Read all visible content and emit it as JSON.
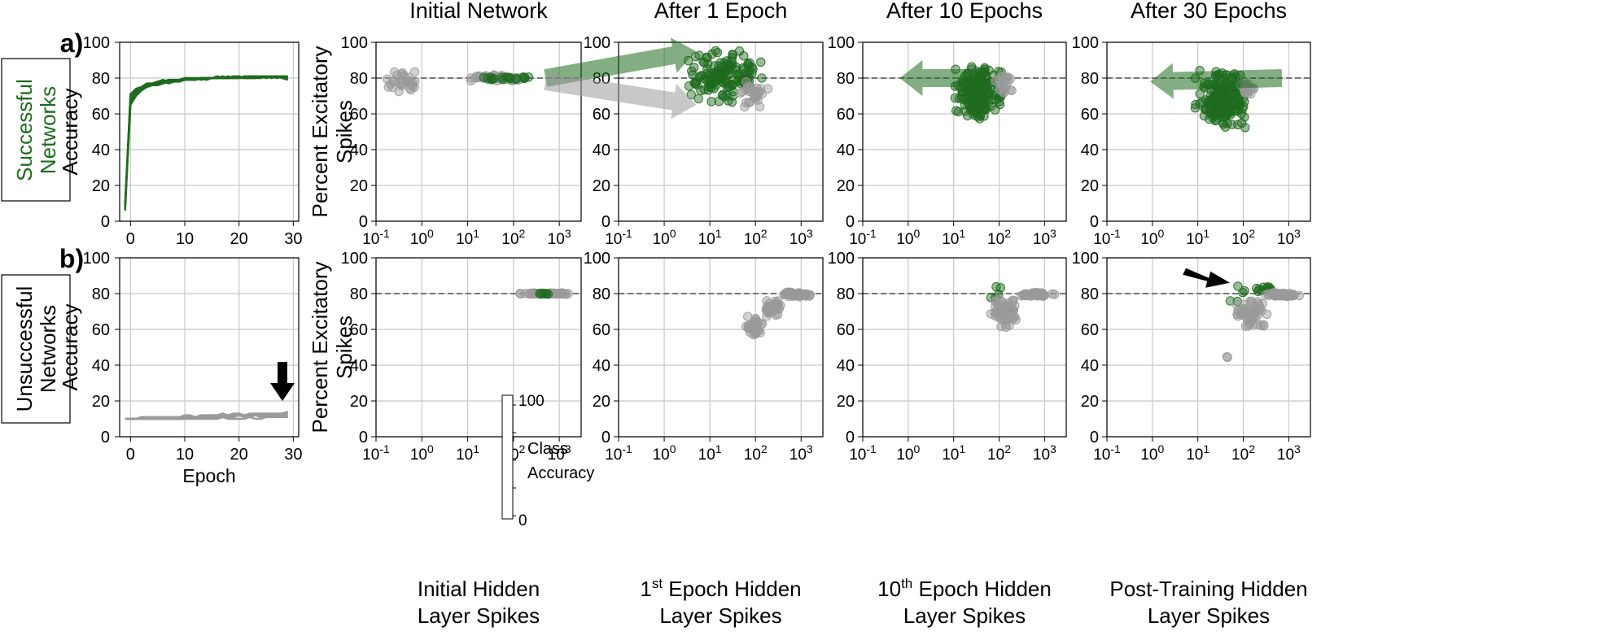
{
  "row_labels": {
    "a": "a)",
    "b": "b)",
    "successful": [
      "Successful",
      "Networks"
    ],
    "unsuccessful": [
      "Unsuccessful",
      "Networks"
    ]
  },
  "column_titles": [
    "Initial Network",
    "After 1 Epoch",
    "After 10 Epochs",
    "After 30 Epochs"
  ],
  "scatter_xlabels": [
    [
      "Initial Hidden",
      "Layer Spikes"
    ],
    [
      "1st Epoch Hidden",
      "Layer Spikes"
    ],
    [
      "10th Epoch Hidden",
      "Layer Spikes"
    ],
    [
      "Post-Training Hidden",
      "Layer Spikes"
    ]
  ],
  "scatter_ylabel": [
    "Percent Excitatory",
    "Spikes"
  ],
  "accuracy_ylabel": "Accuracy",
  "accuracy_xlabel": "Epoch",
  "colorbar": {
    "label": [
      "Class",
      "Accuracy"
    ],
    "min_label": "0",
    "max_label": "100"
  },
  "colors": {
    "successful": "#1e6b1e",
    "unsuccessful": "#9a9a9a",
    "grid": "#c8c8c8",
    "reference_line": "#777777"
  },
  "chart_data": [
    {
      "id": "accuracy-successful",
      "type": "line",
      "xlabel": "",
      "ylabel": "Accuracy",
      "xlim": [
        -2,
        31
      ],
      "ylim": [
        0,
        100
      ],
      "xticks": [
        0,
        10,
        20,
        30
      ],
      "yticks": [
        0,
        20,
        40,
        60,
        80,
        100
      ],
      "grid": true,
      "x": [
        -1,
        0,
        1,
        2,
        3,
        4,
        5,
        6,
        7,
        8,
        9,
        10,
        11,
        12,
        13,
        14,
        15,
        16,
        17,
        18,
        19,
        20,
        21,
        22,
        23,
        24,
        25,
        26,
        27,
        28,
        29
      ],
      "series": [
        {
          "values": [
            6,
            68,
            72,
            74,
            76,
            76,
            77,
            77,
            78,
            78,
            79,
            79,
            79,
            79,
            80,
            80,
            80,
            80,
            80,
            80,
            80,
            80,
            81,
            80,
            80,
            81,
            80,
            81,
            80,
            81,
            80
          ]
        },
        {
          "values": [
            10,
            70,
            73,
            75,
            76,
            77,
            78,
            78,
            79,
            79,
            79,
            80,
            80,
            79,
            80,
            80,
            80,
            81,
            80,
            80,
            81,
            80,
            80,
            81,
            81,
            80,
            81,
            80,
            81,
            80,
            81
          ]
        },
        {
          "values": [
            8,
            65,
            70,
            73,
            75,
            76,
            77,
            78,
            77,
            78,
            79,
            79,
            80,
            80,
            79,
            80,
            80,
            80,
            81,
            80,
            80,
            81,
            80,
            80,
            81,
            81,
            80,
            81,
            81,
            80,
            79
          ]
        },
        {
          "values": [
            7,
            71,
            74,
            75,
            77,
            77,
            78,
            79,
            78,
            79,
            79,
            80,
            79,
            80,
            80,
            80,
            80,
            80,
            80,
            81,
            80,
            80,
            81,
            81,
            80,
            80,
            81,
            81,
            80,
            81,
            81
          ]
        },
        {
          "values": [
            9,
            67,
            71,
            74,
            75,
            76,
            76,
            77,
            78,
            78,
            78,
            79,
            79,
            79,
            80,
            79,
            80,
            80,
            80,
            80,
            81,
            81,
            80,
            80,
            80,
            81,
            81,
            80,
            81,
            81,
            80
          ]
        }
      ]
    },
    {
      "id": "accuracy-unsuccessful",
      "type": "line",
      "xlabel": "Epoch",
      "ylabel": "Accuracy",
      "xlim": [
        -2,
        31
      ],
      "ylim": [
        0,
        100
      ],
      "xticks": [
        0,
        10,
        20,
        30
      ],
      "yticks": [
        0,
        20,
        40,
        60,
        80,
        100
      ],
      "grid": true,
      "x": [
        -1,
        0,
        1,
        2,
        3,
        4,
        5,
        6,
        7,
        8,
        9,
        10,
        11,
        12,
        13,
        14,
        15,
        16,
        17,
        18,
        19,
        20,
        21,
        22,
        23,
        24,
        25,
        26,
        27,
        28,
        29
      ],
      "series": [
        {
          "values": [
            10,
            10,
            10,
            10,
            10,
            10,
            10,
            10,
            10,
            10,
            10,
            10,
            11,
            11,
            11,
            11,
            11,
            11,
            11,
            11,
            11,
            12,
            11,
            11,
            12,
            11,
            12,
            12,
            12,
            12,
            12
          ]
        },
        {
          "values": [
            10,
            10,
            10,
            10,
            11,
            10,
            11,
            11,
            10,
            11,
            11,
            11,
            11,
            11,
            12,
            11,
            12,
            12,
            12,
            12,
            12,
            12,
            12,
            12,
            13,
            12,
            13,
            13,
            13,
            13,
            14
          ]
        },
        {
          "values": [
            10,
            10,
            10,
            10,
            10,
            10,
            10,
            10,
            10,
            10,
            10,
            10,
            10,
            10,
            10,
            10,
            10,
            10,
            11,
            10,
            10,
            10,
            10,
            11,
            10,
            10,
            11,
            11,
            11,
            11,
            11
          ]
        },
        {
          "values": [
            10,
            10,
            10,
            11,
            11,
            11,
            11,
            11,
            11,
            11,
            11,
            12,
            12,
            11,
            12,
            12,
            12,
            12,
            13,
            12,
            13,
            13,
            12,
            13,
            13,
            13,
            13,
            12,
            13,
            13,
            13
          ]
        }
      ],
      "annotation": {
        "type": "arrow",
        "x": 28,
        "y": 20
      }
    },
    {
      "id": "scatter-a-initial",
      "type": "scatter",
      "xscale": "log",
      "xlim": [
        0.1,
        3000
      ],
      "ylim": [
        0,
        100
      ],
      "yticks": [
        0,
        20,
        40,
        60,
        80,
        100
      ],
      "reference_line_y": 80,
      "clusters": [
        {
          "color": "unsuccessful",
          "x_range": [
            0.12,
            1.2
          ],
          "y_range": [
            70,
            85
          ],
          "count": 30
        },
        {
          "color": "unsuccessful",
          "x_range": [
            8,
            250
          ],
          "y_range": [
            78,
            82
          ],
          "count": 45
        },
        {
          "color": "successful",
          "x_range": [
            15,
            300
          ],
          "y_range": [
            79,
            81
          ],
          "count": 18
        }
      ]
    },
    {
      "id": "scatter-a-1epoch",
      "type": "scatter",
      "xscale": "log",
      "xlim": [
        0.1,
        3000
      ],
      "ylim": [
        0,
        100
      ],
      "yticks": [
        0,
        20,
        40,
        60,
        80,
        100
      ],
      "reference_line_y": 80,
      "clusters": [
        {
          "color": "successful",
          "x_range": [
            3,
            150
          ],
          "y_range": [
            65,
            97
          ],
          "count": 150
        },
        {
          "color": "unsuccessful",
          "x_range": [
            40,
            200
          ],
          "y_range": [
            62,
            80
          ],
          "count": 30
        }
      ],
      "arrows": [
        {
          "from": [
            500,
            80
          ],
          "to": [
            5,
            95
          ],
          "color": "successful"
        },
        {
          "from": [
            500,
            80
          ],
          "to": [
            5,
            65
          ],
          "color": "unsuccessful"
        }
      ]
    },
    {
      "id": "scatter-a-10epoch",
      "type": "scatter",
      "xscale": "log",
      "xlim": [
        0.1,
        3000
      ],
      "ylim": [
        0,
        100
      ],
      "yticks": [
        0,
        20,
        40,
        60,
        80,
        100
      ],
      "reference_line_y": 80,
      "clusters": [
        {
          "color": "successful",
          "x_range": [
            8,
            150
          ],
          "y_range": [
            57,
            88
          ],
          "count": 170
        },
        {
          "color": "unsuccessful",
          "x_range": [
            80,
            200
          ],
          "y_range": [
            70,
            82
          ],
          "count": 25
        }
      ],
      "arrows": [
        {
          "from": [
            0.2,
            80
          ],
          "to": [
            0.65,
            80
          ],
          "color": "successful"
        }
      ]
    },
    {
      "id": "scatter-a-30epoch",
      "type": "scatter",
      "xscale": "log",
      "xlim": [
        0.1,
        3000
      ],
      "ylim": [
        0,
        100
      ],
      "yticks": [
        0,
        20,
        40,
        60,
        80,
        100
      ],
      "reference_line_y": 80,
      "clusters": [
        {
          "color": "successful",
          "x_range": [
            8,
            150
          ],
          "y_range": [
            50,
            85
          ],
          "count": 180
        },
        {
          "color": "unsuccessful",
          "x_range": [
            80,
            180
          ],
          "y_range": [
            68,
            80
          ],
          "count": 20
        }
      ],
      "arrows": [
        {
          "from": [
            0.2,
            80
          ],
          "to": [
            0.9,
            78
          ],
          "color": "successful"
        }
      ]
    },
    {
      "id": "scatter-b-initial",
      "type": "scatter",
      "xscale": "log",
      "xlim": [
        0.1,
        3000
      ],
      "ylim": [
        0,
        100
      ],
      "yticks": [
        0,
        20,
        40,
        60,
        80,
        100
      ],
      "reference_line_y": 80,
      "clusters": [
        {
          "color": "unsuccessful",
          "x_range": [
            120,
            1800
          ],
          "y_range": [
            79.5,
            80.5
          ],
          "count": 60
        },
        {
          "color": "successful",
          "x_range": [
            200,
            900
          ],
          "y_range": [
            79.5,
            80.5
          ],
          "count": 6
        }
      ]
    },
    {
      "id": "scatter-b-1epoch",
      "type": "scatter",
      "xscale": "log",
      "xlim": [
        0.1,
        3000
      ],
      "ylim": [
        0,
        100
      ],
      "yticks": [
        0,
        20,
        40,
        60,
        80,
        100
      ],
      "reference_line_y": 80,
      "clusters": [
        {
          "color": "unsuccessful",
          "x_range": [
            60,
            150
          ],
          "y_range": [
            56,
            68
          ],
          "count": 40
        },
        {
          "color": "unsuccessful",
          "x_range": [
            140,
            400
          ],
          "y_range": [
            66,
            78
          ],
          "count": 35
        },
        {
          "color": "unsuccessful",
          "x_range": [
            350,
            1800
          ],
          "y_range": [
            78,
            81
          ],
          "count": 50
        }
      ]
    },
    {
      "id": "scatter-b-10epoch",
      "type": "scatter",
      "xscale": "log",
      "xlim": [
        0.1,
        3000
      ],
      "ylim": [
        0,
        100
      ],
      "yticks": [
        0,
        20,
        40,
        60,
        80,
        100
      ],
      "reference_line_y": 80,
      "clusters": [
        {
          "color": "successful",
          "x_range": [
            60,
            120
          ],
          "y_range": [
            76,
            86
          ],
          "count": 5
        },
        {
          "color": "unsuccessful",
          "x_range": [
            60,
            300
          ],
          "y_range": [
            60,
            78
          ],
          "count": 60
        },
        {
          "color": "unsuccessful",
          "x_range": [
            280,
            1800
          ],
          "y_range": [
            78,
            81
          ],
          "count": 50
        }
      ]
    },
    {
      "id": "scatter-b-30epoch",
      "type": "scatter",
      "xscale": "log",
      "xlim": [
        0.1,
        3000
      ],
      "ylim": [
        0,
        100
      ],
      "yticks": [
        0,
        20,
        40,
        60,
        80,
        100
      ],
      "reference_line_y": 80,
      "clusters": [
        {
          "color": "successful",
          "x_range": [
            50,
            120
          ],
          "y_range": [
            72,
            88
          ],
          "count": 5
        },
        {
          "color": "successful",
          "x_range": [
            180,
            450
          ],
          "y_range": [
            81,
            84
          ],
          "count": 12
        },
        {
          "color": "unsuccessful",
          "x_range": [
            60,
            350
          ],
          "y_range": [
            60,
            78
          ],
          "count": 60
        },
        {
          "color": "unsuccessful",
          "x_range": [
            300,
            1800
          ],
          "y_range": [
            78,
            81
          ],
          "count": 50
        },
        {
          "color": "unsuccessful",
          "x_range": [
            40,
            50
          ],
          "y_range": [
            41,
            46
          ],
          "count": 2
        }
      ],
      "annotation": {
        "type": "arrow",
        "x": 60,
        "y": 86
      }
    }
  ]
}
